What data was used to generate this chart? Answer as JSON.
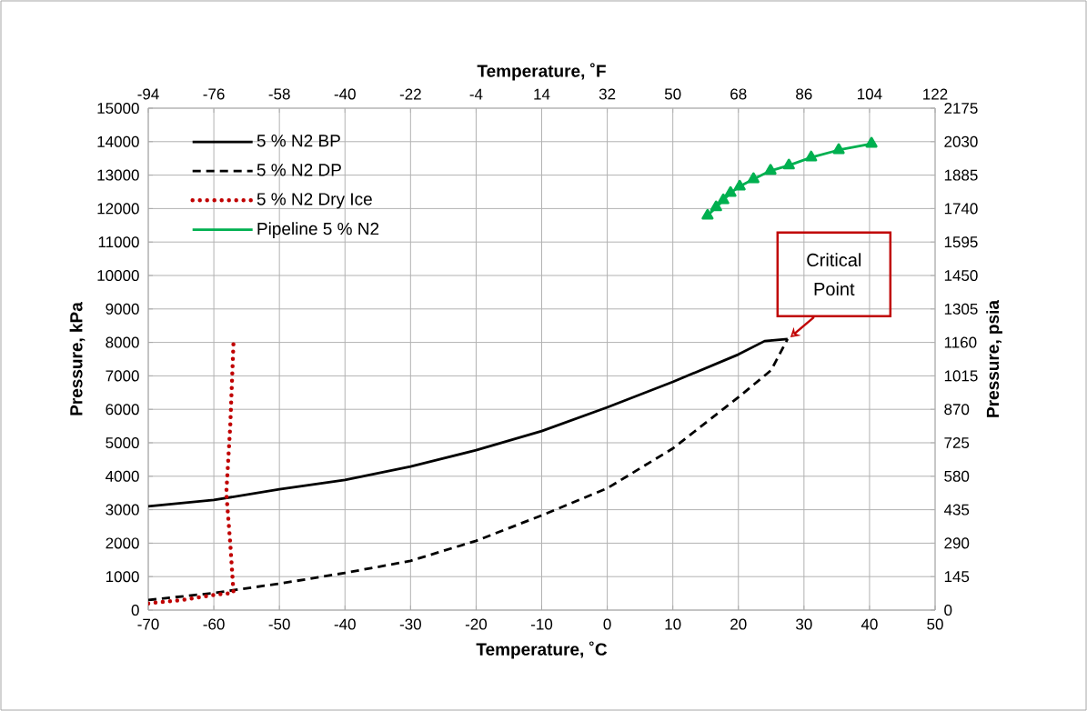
{
  "chart_data": {
    "type": "line",
    "xlabel": "Temperature, ˚C",
    "ylabel": "Pressure, kPa",
    "x2label": "Temperature, ˚F",
    "y2label": "Pressure, psia",
    "xlim": [
      -70,
      50
    ],
    "xticks": [
      -70,
      -60,
      -50,
      -40,
      -30,
      -20,
      -10,
      0,
      10,
      20,
      30,
      40,
      50
    ],
    "ylim": [
      0,
      15000
    ],
    "yticks": [
      0,
      1000,
      2000,
      3000,
      4000,
      5000,
      6000,
      7000,
      8000,
      9000,
      10000,
      11000,
      12000,
      13000,
      14000,
      15000
    ],
    "x2lim": [
      -94,
      122
    ],
    "x2ticks": [
      -94,
      -76,
      -58,
      -40,
      -22,
      -4,
      14,
      32,
      50,
      68,
      86,
      104,
      122
    ],
    "y2lim": [
      0,
      2175
    ],
    "y2ticks": [
      0,
      145,
      290,
      435,
      580,
      725,
      870,
      1015,
      1160,
      1305,
      1450,
      1595,
      1740,
      1885,
      2030,
      2175
    ],
    "grid": true,
    "legend": "top left",
    "series": [
      {
        "name": "5 % N2 BP",
        "color": "#000000",
        "line_style": "solid",
        "marker": "none",
        "x": [
          -70,
          -60,
          -50,
          -40,
          -30,
          -20,
          -10,
          0,
          10,
          20,
          24,
          27.5
        ],
        "values": [
          3100,
          3290,
          3610,
          3890,
          4290,
          4780,
          5350,
          6060,
          6820,
          7640,
          8040,
          8100
        ]
      },
      {
        "name": "5 % N2 DP",
        "color": "#000000",
        "line_style": "dashed",
        "marker": "none",
        "x": [
          -70,
          -60,
          -50,
          -40,
          -30,
          -20,
          -10,
          0,
          10,
          20,
          25,
          27.5
        ],
        "values": [
          300,
          510,
          790,
          1110,
          1470,
          2070,
          2830,
          3640,
          4830,
          6360,
          7170,
          8100
        ]
      },
      {
        "name": "5 % N2 Dry Ice",
        "color": "#c00000",
        "line_style": "dotted",
        "marker": "none",
        "x": [
          -70,
          -65,
          -60,
          -57,
          -57.5,
          -58.1,
          -57.5,
          -57
        ],
        "values": [
          200,
          300,
          450,
          520,
          2000,
          3500,
          5500,
          8000
        ]
      },
      {
        "name": "Pipeline 5 % N2",
        "color": "#00b050",
        "line_style": "solid",
        "marker": "triangle",
        "x": [
          15.3,
          16.6,
          17.7,
          18.8,
          20.2,
          22.3,
          24.9,
          27.7,
          31.1,
          35.3,
          40.3
        ],
        "values": [
          11790,
          12040,
          12250,
          12470,
          12660,
          12880,
          13130,
          13290,
          13530,
          13750,
          13940
        ]
      }
    ],
    "annotations": [
      {
        "text": "Critical Point",
        "x": 27.5,
        "y": 8100
      }
    ]
  }
}
